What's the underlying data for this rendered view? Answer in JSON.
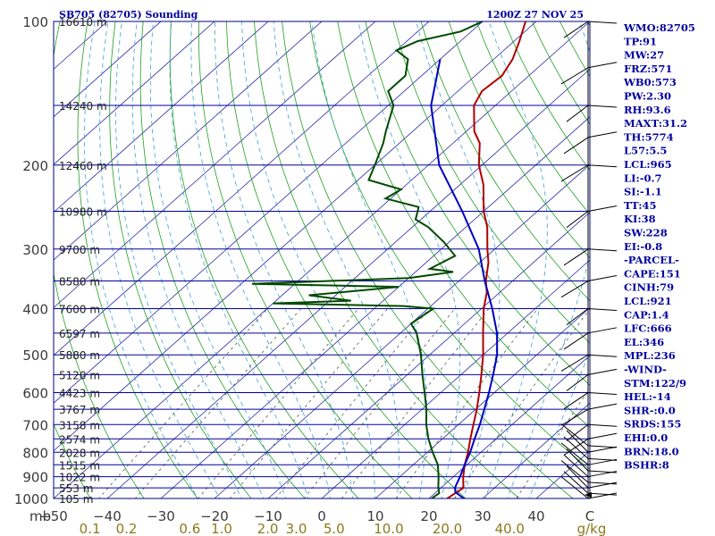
{
  "chart_data": {
    "type": "skew-t log-p sounding",
    "title_left": "SB705 (82705) Sounding",
    "title_right": "1200Z 27 NOV 25",
    "pressure_ticks": [
      "100",
      "200",
      "300",
      "400",
      "500",
      "600",
      "700",
      "800",
      "900",
      "1000"
    ],
    "pressure_tick_values": [
      100,
      200,
      300,
      400,
      500,
      600,
      700,
      800,
      900,
      1000
    ],
    "pressure_unit_label": "mb",
    "pressure_range_hpa": [
      100,
      1000
    ],
    "temperature_range_c": [
      -50,
      50
    ],
    "temperature_ticks": [
      "−50",
      "−40",
      "−30",
      "−20",
      "−10",
      "0",
      "10",
      "20",
      "30",
      "40",
      "C"
    ],
    "temperature_tick_values": [
      -50,
      -40,
      -30,
      -20,
      -10,
      0,
      10,
      20,
      30,
      40,
      50
    ],
    "mixing_ratio_ticks": [
      "0.1",
      "0.2",
      "0.6",
      "1.0",
      "2.0",
      "3.0",
      "5.0",
      "10.0",
      "20.0",
      "40.0",
      "g/kg"
    ],
    "mixing_ratio_values_gkg": [
      0.1,
      0.2,
      0.6,
      1.0,
      2.0,
      3.0,
      5.0,
      10.0,
      20.0,
      40.0
    ],
    "height_labels": [
      {
        "p": 100,
        "label": "16610 m"
      },
      {
        "p": 150,
        "label": "14240 m"
      },
      {
        "p": 200,
        "label": "12460 m"
      },
      {
        "p": 250,
        "label": "10980 m"
      },
      {
        "p": 300,
        "label": "9700 m"
      },
      {
        "p": 350,
        "label": "8580 m"
      },
      {
        "p": 400,
        "label": "7600 m"
      },
      {
        "p": 450,
        "label": "6597 m"
      },
      {
        "p": 500,
        "label": "5880 m"
      },
      {
        "p": 550,
        "label": "5120 m"
      },
      {
        "p": 600,
        "label": "4423 m"
      },
      {
        "p": 650,
        "label": "3767 m"
      },
      {
        "p": 700,
        "label": "3158 m"
      },
      {
        "p": 750,
        "label": "2574 m"
      },
      {
        "p": 800,
        "label": "2028 m"
      },
      {
        "p": 850,
        "label": "1515 m"
      },
      {
        "p": 900,
        "label": "1022 m"
      },
      {
        "p": 950,
        "label": "553 m"
      },
      {
        "p": 1000,
        "label": "105 m"
      }
    ],
    "series": [
      {
        "name": "temperature",
        "color": "#b00000",
        "points": [
          [
            1000,
            23.4
          ],
          [
            975,
            23.8
          ],
          [
            950,
            24.2
          ],
          [
            925,
            23.0
          ],
          [
            900,
            21.8
          ],
          [
            850,
            19.6
          ],
          [
            800,
            17.6
          ],
          [
            750,
            15.2
          ],
          [
            700,
            12.8
          ],
          [
            650,
            10.2
          ],
          [
            600,
            7.2
          ],
          [
            550,
            3.8
          ],
          [
            500,
            0.0
          ],
          [
            450,
            -4.6
          ],
          [
            400,
            -9.6
          ],
          [
            370,
            -12.4
          ],
          [
            350,
            -15.0
          ],
          [
            320,
            -18.4
          ],
          [
            300,
            -21.4
          ],
          [
            270,
            -26.0
          ],
          [
            250,
            -30.0
          ],
          [
            220,
            -35.6
          ],
          [
            200,
            -40.6
          ],
          [
            180,
            -45.0
          ],
          [
            170,
            -48.5
          ],
          [
            150,
            -54.0
          ],
          [
            140,
            -55.5
          ],
          [
            130,
            -55.0
          ],
          [
            120,
            -56.5
          ],
          [
            110,
            -59.0
          ],
          [
            100,
            -62.0
          ]
        ]
      },
      {
        "name": "dewpoint",
        "color": "#004a00",
        "points": [
          [
            1000,
            20.5
          ],
          [
            975,
            20.8
          ],
          [
            950,
            19.5
          ],
          [
            900,
            17.2
          ],
          [
            850,
            14.6
          ],
          [
            800,
            11.0
          ],
          [
            750,
            7.4
          ],
          [
            700,
            4.0
          ],
          [
            650,
            0.8
          ],
          [
            600,
            -3.0
          ],
          [
            550,
            -7.2
          ],
          [
            500,
            -11.6
          ],
          [
            450,
            -17.0
          ],
          [
            430,
            -20.0
          ],
          [
            400,
            -19.0
          ],
          [
            395,
            -25.0
          ],
          [
            390,
            -50.0
          ],
          [
            385,
            -36.0
          ],
          [
            375,
            -45.0
          ],
          [
            360,
            -30.0
          ],
          [
            355,
            -58.0
          ],
          [
            345,
            -30.0
          ],
          [
            335,
            -23.0
          ],
          [
            330,
            -28.0
          ],
          [
            310,
            -26.0
          ],
          [
            290,
            -31.0
          ],
          [
            270,
            -37.0
          ],
          [
            260,
            -41.0
          ],
          [
            245,
            -43.0
          ],
          [
            235,
            -51.0
          ],
          [
            225,
            -50.0
          ],
          [
            215,
            -58.0
          ],
          [
            200,
            -60.0
          ],
          [
            180,
            -63.0
          ],
          [
            170,
            -65.0
          ],
          [
            150,
            -69.0
          ],
          [
            140,
            -73.0
          ],
          [
            130,
            -73.0
          ],
          [
            120,
            -76.0
          ],
          [
            115,
            -80.0
          ],
          [
            110,
            -78.0
          ],
          [
            105,
            -72.0
          ],
          [
            100,
            -70.0
          ]
        ]
      },
      {
        "name": "parcel",
        "color": "#0000c0",
        "points": [
          [
            1000,
            26.5
          ],
          [
            970,
            23.6
          ],
          [
            950,
            22.6
          ],
          [
            900,
            21.2
          ],
          [
            850,
            19.6
          ],
          [
            800,
            18.0
          ],
          [
            750,
            16.0
          ],
          [
            700,
            14.0
          ],
          [
            650,
            11.6
          ],
          [
            600,
            9.0
          ],
          [
            550,
            6.0
          ],
          [
            500,
            2.6
          ],
          [
            450,
            -2.0
          ],
          [
            400,
            -8.0
          ],
          [
            350,
            -15.2
          ],
          [
            300,
            -23.0
          ],
          [
            250,
            -34.0
          ],
          [
            200,
            -48.0
          ],
          [
            150,
            -62.0
          ],
          [
            120,
            -70.0
          ]
        ]
      }
    ],
    "wind_barb_pressures": [
      1000,
      975,
      950,
      925,
      900,
      875,
      850,
      825,
      800,
      775,
      750,
      700,
      650,
      600,
      550,
      500,
      450,
      400,
      350,
      300,
      250,
      200,
      175,
      150,
      125,
      100
    ]
  },
  "indices": [
    "WMO:82705",
    "TP:91",
    "MW:27",
    "FRZ:571",
    "WB0:573",
    "PW:2.30",
    "RH:93.6",
    "MAXT:31.2",
    "TH:5774",
    "L57:5.5",
    "LCL:965",
    "LI:-0.7",
    "SI:-1.1",
    "TT:45",
    "KI:38",
    "SW:228",
    "EI:-0.8",
    "-PARCEL-",
    "CAPE:151",
    "CINH:79",
    "LCL:921",
    "CAP:1.4",
    "LFC:666",
    "EL:346",
    "MPL:236",
    "-WIND-",
    "STM:122/9",
    "HEL:-14",
    "SHR-:0.0",
    "SRDS:155",
    "EHI:0.0",
    "BRN:18.0",
    "BSHR:8"
  ],
  "colors": {
    "isobar": "#0000a0",
    "isotherm": "#2a2aaa",
    "dry_adiabat": "#20a020",
    "moist_adiabat": "#40a0d0",
    "mixing_ratio": "#607060",
    "label_text": "#0000a0"
  }
}
